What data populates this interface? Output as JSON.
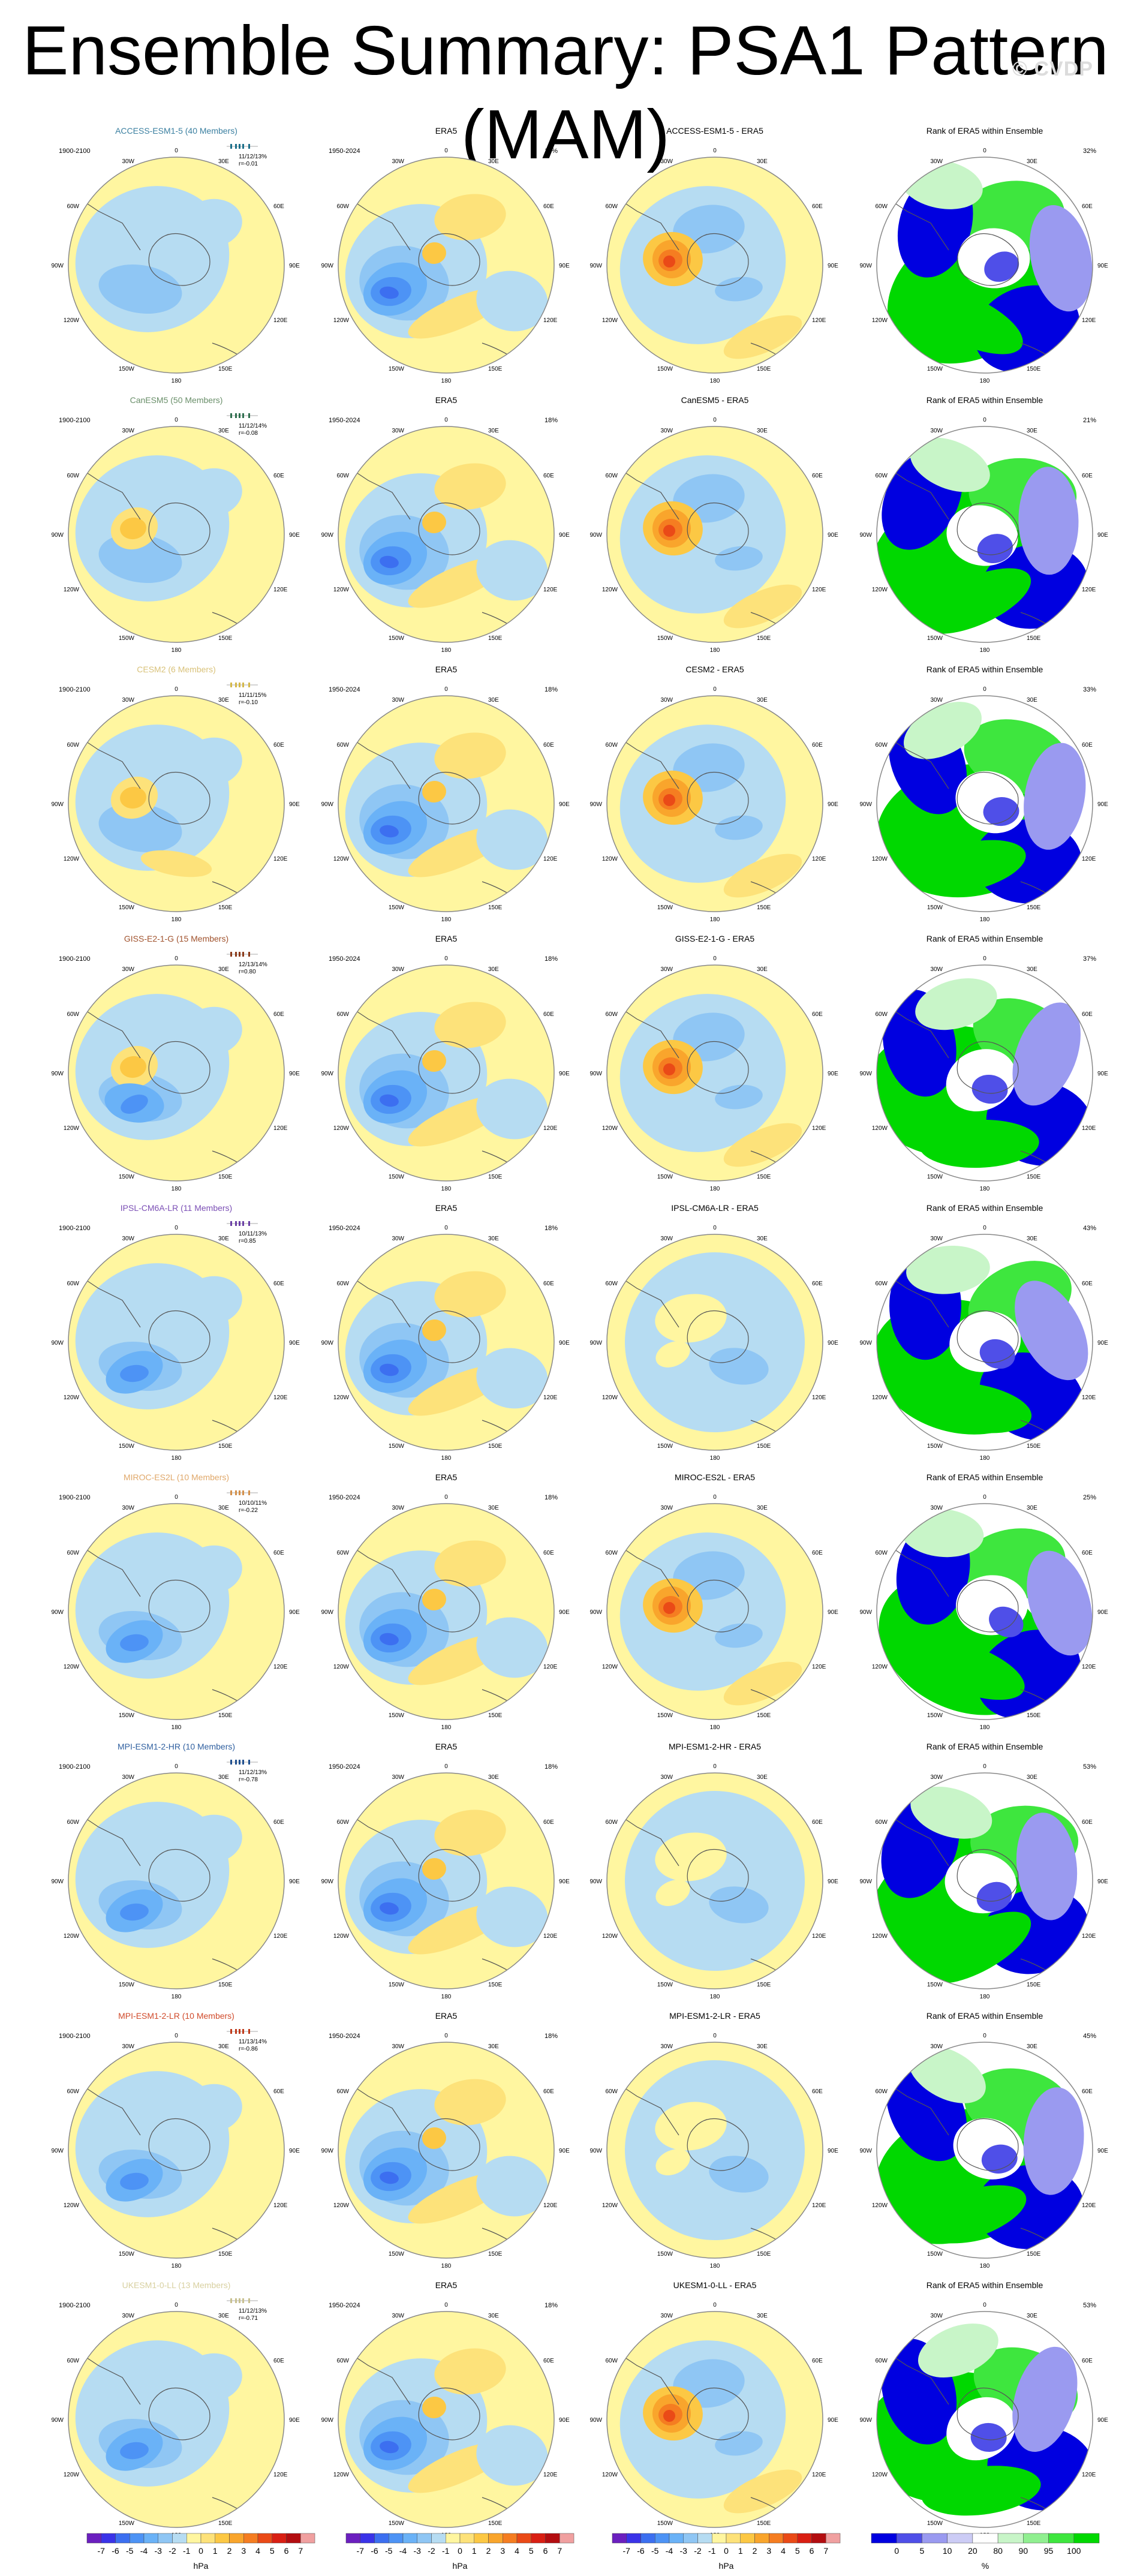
{
  "title": "Ensemble Summary: PSA1 Pattern (MAM)",
  "watermark": "© CVDP",
  "rows": [
    {
      "model_label": "ACCESS-ESM1-5 (40 Members)",
      "model_color": "#3a7fa0",
      "model_years": "1900-2100",
      "stats": "11/12/13%",
      "corr": "r=-0.01",
      "diff_label": "ACCESS-ESM1-5 - ERA5",
      "rank_pct": "32%",
      "marker_color": "#1c6f8a"
    },
    {
      "model_label": "CanESM5 (50 Members)",
      "model_color": "#6a8f6a",
      "model_years": "1900-2100",
      "stats": "11/12/14%",
      "corr": "r=-0.08",
      "diff_label": "CanESM5 - ERA5",
      "rank_pct": "21%",
      "marker_color": "#2f6f4f"
    },
    {
      "model_label": "CESM2 (6 Members)",
      "model_color": "#d9c27a",
      "model_years": "1900-2100",
      "stats": "11/11/15%",
      "corr": "r=-0.10",
      "diff_label": "CESM2 - ERA5",
      "rank_pct": "33%",
      "marker_color": "#d4b84a"
    },
    {
      "model_label": "GISS-E2-1-G (15 Members)",
      "model_color": "#a0522d",
      "model_years": "1900-2100",
      "stats": "12/13/14%",
      "corr": "r=0.80",
      "diff_label": "GISS-E2-1-G - ERA5",
      "rank_pct": "37%",
      "marker_color": "#8b3a1a"
    },
    {
      "model_label": "IPSL-CM6A-LR (11 Members)",
      "model_color": "#7b4fb5",
      "model_years": "1900-2100",
      "stats": "10/11/13%",
      "corr": "r=0.85",
      "diff_label": "IPSL-CM6A-LR - ERA5",
      "rank_pct": "43%",
      "marker_color": "#6a3fa5"
    },
    {
      "model_label": "MIROC-ES2L (10 Members)",
      "model_color": "#e0a86a",
      "model_years": "1900-2100",
      "stats": "10/10/11%",
      "corr": "r=-0.22",
      "diff_label": "MIROC-ES2L - ERA5",
      "rank_pct": "25%",
      "marker_color": "#d4904a"
    },
    {
      "model_label": "MPI-ESM1-2-HR (10 Members)",
      "model_color": "#2f5f9f",
      "model_years": "1900-2100",
      "stats": "11/12/13%",
      "corr": "r=-0.78",
      "diff_label": "MPI-ESM1-2-HR - ERA5",
      "rank_pct": "53%",
      "marker_color": "#1f4f8f"
    },
    {
      "model_label": "MPI-ESM1-2-LR (10 Members)",
      "model_color": "#d04a2a",
      "model_years": "1900-2100",
      "stats": "11/13/14%",
      "corr": "r=-0.86",
      "diff_label": "MPI-ESM1-2-LR - ERA5",
      "rank_pct": "45%",
      "marker_color": "#c03a1a"
    },
    {
      "model_label": "UKESM1-0-LL (13 Members)",
      "model_color": "#d8d0a0",
      "model_years": "1900-2100",
      "stats": "11/12/13%",
      "corr": "r=-0.71",
      "diff_label": "UKESM1-0-LL - ERA5",
      "rank_pct": "53%",
      "marker_color": "#c8c090"
    }
  ],
  "era5": {
    "label": "ERA5",
    "years": "1950-2024",
    "pct": "18%"
  },
  "rank_title": "Rank of ERA5 within Ensemble",
  "map_labels": {
    "top": "0",
    "bottom": "180",
    "left": "90W",
    "right": "90E",
    "ul1": "30W",
    "ul2": "60W",
    "ur1": "30E",
    "ur2": "60E",
    "ll1": "120W",
    "ll2": "150W",
    "lr1": "120E",
    "lr2": "150E"
  },
  "colorbar_hpa": {
    "ticks": [
      "-7",
      "-6",
      "-5",
      "-4",
      "-3",
      "-2",
      "-1",
      "0",
      "1",
      "2",
      "3",
      "4",
      "5",
      "6",
      "7"
    ],
    "unit": "hPa"
  },
  "colorbar_rank": {
    "ticks": [
      "0",
      "5",
      "10",
      "20",
      "80",
      "90",
      "95",
      "100"
    ],
    "unit": "%"
  },
  "colors": {
    "hpa": [
      "#6b1fbf",
      "#3a33e8",
      "#3c6ff0",
      "#4d93f5",
      "#6ab2f7",
      "#8fc6f4",
      "#b6dcf2",
      "#fff6a0",
      "#fde27a",
      "#fcc844",
      "#f9a52c",
      "#f57d21",
      "#ea4a17",
      "#d91f13",
      "#b30d10",
      "#f0a0a0"
    ],
    "rank": [
      "#0000e0",
      "#4f4fe8",
      "#9a9af0",
      "#ccccf5",
      "#ffffff",
      "#c8f5c8",
      "#90ef90",
      "#3ee63e",
      "#00d800"
    ],
    "coast": "#555555",
    "map_border": "#888888",
    "ocean_neutral": "#b6dcf2",
    "positive": "#fff6a0"
  }
}
